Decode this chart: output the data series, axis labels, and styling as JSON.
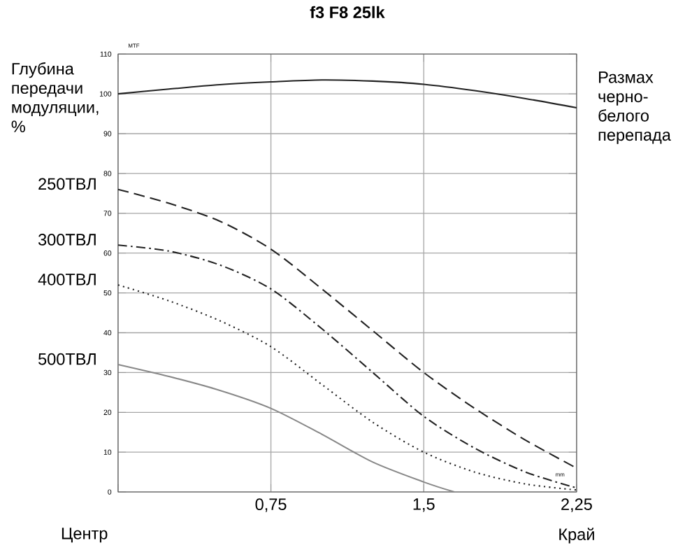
{
  "chart_data": {
    "type": "line",
    "title": "f3 F8 25lk",
    "ylabel": "Глубина передачи модуляции, %",
    "xlim": [
      0,
      2.25
    ],
    "ylim": [
      0,
      110
    ],
    "xticks": [
      {
        "value": 0,
        "label": null
      },
      {
        "value": 0.75,
        "label": "0,75"
      },
      {
        "value": 1.5,
        "label": "1,5"
      },
      {
        "value": 2.25,
        "label": "2,25"
      }
    ],
    "yticks": [
      0,
      10,
      20,
      30,
      40,
      50,
      60,
      70,
      80,
      90,
      100,
      110
    ],
    "grid": true,
    "annotations": [
      "Центр",
      "Край",
      "MTF",
      "mm"
    ],
    "series": [
      {
        "name": "Размах черно-белого перепада",
        "color": "#222222",
        "line_style": "solid",
        "x": [
          0,
          0.25,
          0.5,
          0.75,
          1.0,
          1.25,
          1.5,
          1.75,
          2.0,
          2.25
        ],
        "values": [
          100,
          101.2,
          102.3,
          103,
          103.5,
          103.2,
          102.4,
          100.8,
          98.8,
          96.5
        ]
      },
      {
        "name": "250ТВЛ",
        "color": "#222222",
        "line_style": "dashed",
        "x": [
          0,
          0.25,
          0.5,
          0.75,
          1.0,
          1.25,
          1.5,
          1.75,
          2.0,
          2.25
        ],
        "values": [
          76,
          72.5,
          68,
          61,
          51,
          40.5,
          30,
          21,
          13,
          6
        ]
      },
      {
        "name": "300ТВЛ",
        "color": "#222222",
        "line_style": "dashdot",
        "x": [
          0,
          0.25,
          0.5,
          0.75,
          1.0,
          1.25,
          1.5,
          1.75,
          2.0,
          2.25
        ],
        "values": [
          62,
          60.5,
          57,
          51,
          41,
          30,
          19,
          11,
          5,
          1
        ]
      },
      {
        "name": "400ТВЛ",
        "color": "#222222",
        "line_style": "dotted",
        "x": [
          0,
          0.25,
          0.5,
          0.75,
          1.0,
          1.25,
          1.5,
          1.75,
          2.0,
          2.25
        ],
        "values": [
          52,
          48,
          43,
          36.5,
          27,
          17.5,
          10,
          5,
          2,
          0.5
        ]
      },
      {
        "name": "500ТВЛ",
        "color": "#888888",
        "line_style": "solid",
        "x": [
          0,
          0.25,
          0.5,
          0.75,
          1.0,
          1.25,
          1.5,
          1.65
        ],
        "values": [
          32,
          29,
          25.5,
          21,
          14.5,
          7.5,
          2.5,
          0
        ]
      }
    ]
  }
}
